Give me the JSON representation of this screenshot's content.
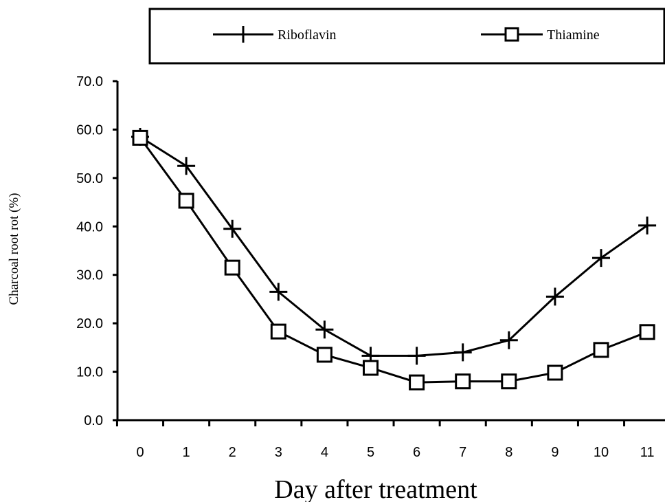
{
  "chart_data": {
    "type": "line",
    "title": "",
    "xlabel": "Day after treatment",
    "ylabel": "Charcoal root rot (%)",
    "categories": [
      "0",
      "1",
      "2",
      "3",
      "4",
      "5",
      "6",
      "7",
      "8",
      "9",
      "10",
      "11"
    ],
    "y_ticks": [
      "0.0",
      "10.0",
      "20.0",
      "30.0",
      "40.0",
      "50.0",
      "60.0",
      "70.0"
    ],
    "ylim": [
      0,
      70
    ],
    "grid": false,
    "legend_position": "top",
    "series": [
      {
        "name": "Riboflavin",
        "marker": "plus",
        "values": [
          58.5,
          52.5,
          39.5,
          26.5,
          18.7,
          13.3,
          13.3,
          14.0,
          16.5,
          25.5,
          33.5,
          40.2
        ]
      },
      {
        "name": "Thiamine",
        "marker": "square",
        "values": [
          58.3,
          45.3,
          31.5,
          18.3,
          13.5,
          10.8,
          7.8,
          8.0,
          8.0,
          9.8,
          14.5,
          18.2
        ]
      }
    ],
    "colors": {
      "line": "#000000",
      "marker_fill": "#ffffff"
    }
  }
}
